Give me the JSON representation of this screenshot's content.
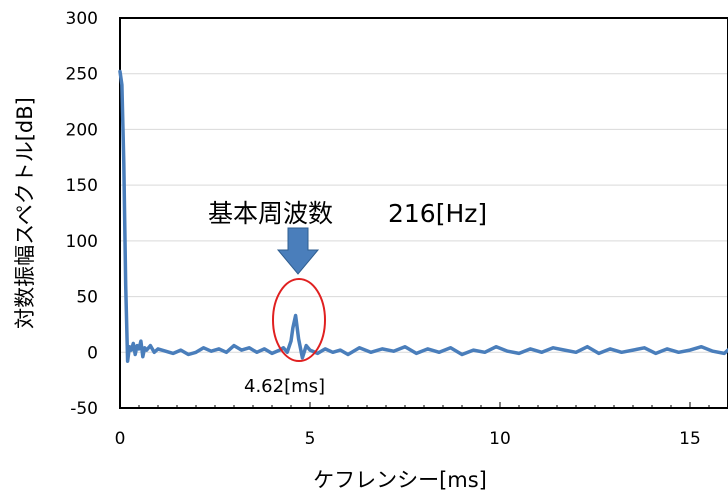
{
  "chart_data": {
    "type": "line",
    "title": "",
    "xlabel": "ケフレンシー[ms]",
    "ylabel": "対数振幅スペクトル[dB]",
    "xlim": [
      0,
      16
    ],
    "ylim": [
      -50,
      300
    ],
    "xticks": [
      0,
      5,
      10,
      15
    ],
    "yticks": [
      300,
      250,
      200,
      150,
      100,
      50,
      0,
      -50
    ],
    "grid": "horizontal",
    "line_color": "#4a7ebb",
    "series": [
      {
        "x": [
          0,
          0.05,
          0.1,
          0.15,
          0.2,
          0.25,
          0.3,
          0.35,
          0.4,
          0.45,
          0.5,
          0.55,
          0.6,
          0.65,
          0.7,
          0.8,
          0.9,
          1.0,
          1.2,
          1.4,
          1.6,
          1.8,
          2.0,
          2.2,
          2.4,
          2.6,
          2.8,
          3.0,
          3.2,
          3.4,
          3.6,
          3.8,
          4.0,
          4.2,
          4.3,
          4.4,
          4.5,
          4.55,
          4.62,
          4.7,
          4.8,
          4.9,
          5.0,
          5.2,
          5.4,
          5.6,
          5.8,
          6.0,
          6.3,
          6.6,
          6.9,
          7.2,
          7.5,
          7.8,
          8.1,
          8.4,
          8.7,
          9.0,
          9.3,
          9.6,
          9.9,
          10.2,
          10.5,
          10.8,
          11.1,
          11.4,
          11.7,
          12.0,
          12.3,
          12.6,
          12.9,
          13.2,
          13.5,
          13.8,
          14.1,
          14.4,
          14.7,
          15.0,
          15.3,
          15.6,
          15.9,
          16.0
        ],
        "y": [
          252,
          240,
          170,
          60,
          -8,
          5,
          2,
          8,
          -2,
          6,
          3,
          10,
          -4,
          4,
          2,
          6,
          0,
          3,
          1,
          -1,
          2,
          -2,
          0,
          4,
          1,
          3,
          0,
          6,
          2,
          4,
          0,
          3,
          -1,
          2,
          4,
          0,
          10,
          22,
          33,
          12,
          -5,
          6,
          2,
          -1,
          3,
          0,
          2,
          -2,
          4,
          0,
          3,
          1,
          5,
          -1,
          3,
          0,
          4,
          -2,
          2,
          0,
          5,
          1,
          -1,
          3,
          0,
          4,
          2,
          0,
          5,
          -1,
          3,
          0,
          2,
          4,
          -1,
          3,
          0,
          2,
          5,
          1,
          -1,
          2
        ]
      }
    ],
    "annotations": [
      {
        "text": "基本周波数",
        "value": "216[Hz]"
      },
      {
        "text": "4.62[ms]",
        "x": 4.62
      }
    ]
  }
}
